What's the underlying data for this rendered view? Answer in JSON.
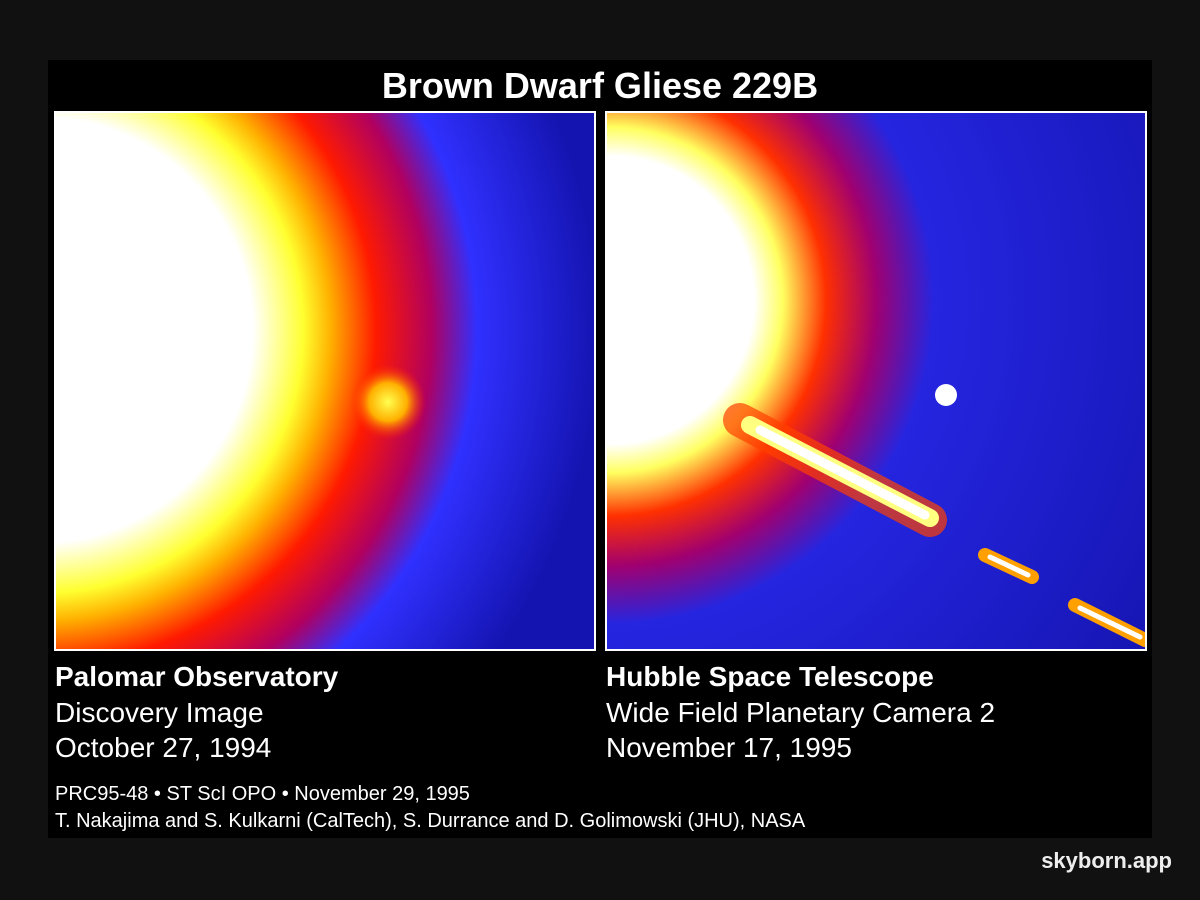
{
  "title": "Brown Dwarf Gliese 229B",
  "panels": [
    {
      "heading": "Palomar Observatory",
      "lines": [
        "Discovery Image",
        "October 27, 1994"
      ]
    },
    {
      "heading": "Hubble Space Telescope",
      "lines": [
        "Wide Field Planetary Camera 2",
        "November 17, 1995"
      ]
    }
  ],
  "credits": [
    "PRC95-48 • ST ScI OPO • November 29, 1995",
    "T. Nakajima and S. Kulkarni (CalTech), S. Durrance and D. Golimowski (JHU), NASA"
  ],
  "watermark": "skyborn.app"
}
